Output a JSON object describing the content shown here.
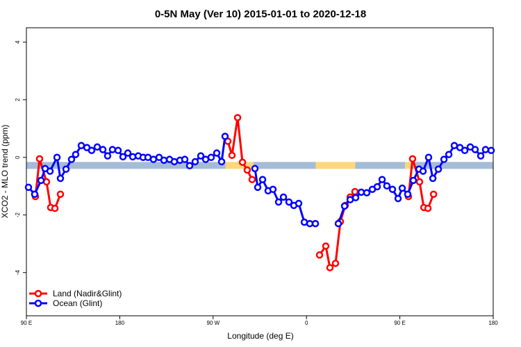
{
  "chart_data": {
    "type": "line",
    "title": "0-5N May (Ver 10)   2015-01-01 to 2020-12-18",
    "xlabel": "Longitude (deg E)",
    "ylabel": "XCO2 - MLO trend (ppm)",
    "xlim": [
      90,
      540
    ],
    "ylim": [
      -5.5,
      4.5
    ],
    "xticks": [
      {
        "value": 90,
        "label": "90 E"
      },
      {
        "value": 180,
        "label": "180"
      },
      {
        "value": 270,
        "label": "90 W"
      },
      {
        "value": 360,
        "label": "0"
      },
      {
        "value": 450,
        "label": "90 E"
      },
      {
        "value": 540,
        "label": "180"
      }
    ],
    "yticks": [
      4,
      2,
      0,
      -2,
      -4
    ],
    "legend": "bottom-left",
    "band": {
      "value": -0.28,
      "segments": [
        {
          "x": [
            90,
            282
          ],
          "color": "#a5bcd8"
        },
        {
          "x": [
            282,
            309
          ],
          "color": "#fdd77a"
        },
        {
          "x": [
            309,
            369
          ],
          "color": "#a5bcd8"
        },
        {
          "x": [
            369,
            407
          ],
          "color": "#fdd77a"
        },
        {
          "x": [
            407,
            455
          ],
          "color": "#a5bcd8"
        },
        {
          "x": [
            455,
            461
          ],
          "color": "#fdd77a"
        },
        {
          "x": [
            461,
            540
          ],
          "color": "#a5bcd8"
        }
      ]
    },
    "series": [
      {
        "name": "Land (Nadir&Glint)",
        "color": "#ff0000",
        "x": [
          98.7,
          102.7,
          109.4,
          113.4,
          117.5,
          122.8,
          null,
          284.2,
          288.2,
          293.6,
          298.3,
          302.9,
          307.6,
          null,
          372.6,
          378.6,
          382.6,
          388.0,
          392.7,
          397.4,
          402.1,
          406.7,
          null,
          458.3,
          462.3,
          469.0,
          473.1,
          477.1,
          482.5
        ],
        "values": [
          -1.36,
          -0.05,
          -0.85,
          -1.74,
          -1.77,
          -1.28,
          null,
          0.56,
          0.07,
          1.38,
          -0.17,
          -0.44,
          -0.77,
          null,
          -3.39,
          -3.08,
          -3.83,
          -3.68,
          -2.23,
          -1.67,
          -1.38,
          -1.19,
          null,
          -1.36,
          -0.05,
          -0.85,
          -1.74,
          -1.77,
          -1.28
        ]
      },
      {
        "name": "Ocean (Glint)",
        "color": "#0000ff",
        "x": [
          92.0,
          98.0,
          104.1,
          108.1,
          112.8,
          119.5,
          122.8,
          128.2,
          133.5,
          137.5,
          142.9,
          148.3,
          152.9,
          158.3,
          163.7,
          168.3,
          173.0,
          178.4,
          183.1,
          187.8,
          192.5,
          197.8,
          202.5,
          207.2,
          212.5,
          217.9,
          222.6,
          228.0,
          232.6,
          238.0,
          242.7,
          247.4,
          252.7,
          258.1,
          262.8,
          268.1,
          273.5,
          278.2,
          281.5,
          null,
          310.3,
          313.0,
          317.7,
          323.0,
          327.7,
          333.1,
          337.8,
          343.1,
          347.8,
          352.5,
          357.9,
          363.2,
          368.6,
          null,
          390.7,
          396.7,
          402.1,
          407.4,
          412.8,
          418.1,
          423.5,
          428.2,
          432.9,
          437.5,
          442.9,
          448.3,
          452.3,
          457.6,
          463.0,
          468.4,
          472.4,
          477.7,
          481.8,
          487.1,
          492.5,
          497.2,
          502.5,
          507.9,
          512.6,
          517.9,
          522.6,
          528.0,
          532.6,
          538.0
        ],
        "values": [
          -1.04,
          -1.28,
          -0.8,
          -0.39,
          -0.48,
          0.0,
          -0.73,
          -0.41,
          -0.07,
          0.1,
          0.41,
          0.34,
          0.24,
          0.36,
          0.27,
          0.05,
          0.27,
          0.24,
          0.02,
          0.15,
          0.02,
          0.05,
          0.0,
          0.0,
          -0.07,
          0.0,
          -0.1,
          -0.07,
          -0.15,
          -0.1,
          -0.07,
          -0.29,
          -0.15,
          0.05,
          -0.07,
          0.0,
          0.15,
          -0.15,
          0.73,
          null,
          -0.39,
          -1.04,
          -0.77,
          -1.16,
          -1.11,
          -1.55,
          -1.38,
          -1.55,
          -1.67,
          -1.6,
          -2.25,
          -2.3,
          -2.3,
          null,
          -2.3,
          -1.69,
          -1.47,
          -1.4,
          -1.21,
          -1.23,
          -1.11,
          -1.02,
          -0.77,
          -0.99,
          -1.11,
          -1.43,
          -1.07,
          -1.28,
          -0.8,
          -0.41,
          -0.48,
          0.0,
          -0.73,
          -0.41,
          -0.07,
          0.1,
          0.41,
          0.34,
          0.24,
          0.36,
          0.27,
          0.05,
          0.27,
          0.24
        ]
      }
    ]
  }
}
